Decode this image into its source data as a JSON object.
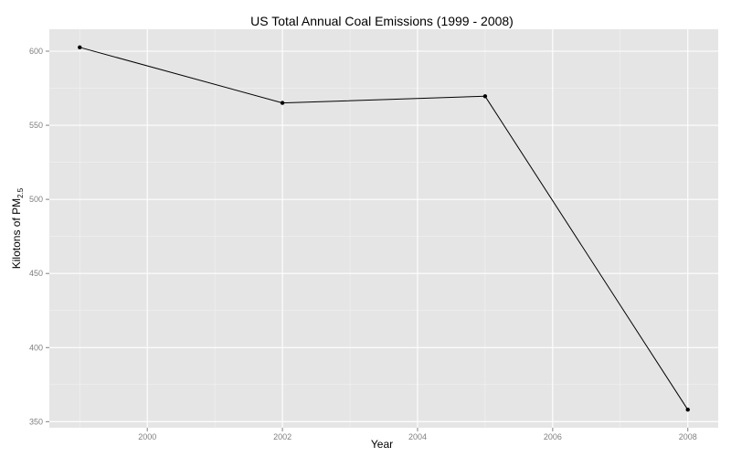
{
  "chart_data": {
    "type": "line",
    "title": "US Total Annual Coal Emissions (1999 - 2008)",
    "xlabel": "Year",
    "ylabel_main": "Kilotons of PM",
    "ylabel_sub": "2.5",
    "x": [
      1999,
      2002,
      2005,
      2008
    ],
    "y": [
      602.6,
      565.1,
      569.6,
      358.1
    ],
    "xlim": [
      1998.55,
      2008.45
    ],
    "ylim": [
      345.9,
      614.8
    ],
    "x_major_ticks": [
      2000,
      2002,
      2004,
      2006,
      2008
    ],
    "x_tick_labels": [
      "2000",
      "2002",
      "2004",
      "2006",
      "2008"
    ],
    "x_minor_ticks": [
      1999,
      2001,
      2003,
      2005,
      2007
    ],
    "y_major_ticks": [
      350,
      400,
      450,
      500,
      550,
      600
    ],
    "y_tick_labels": [
      "350",
      "400",
      "450",
      "500",
      "550",
      "600"
    ],
    "y_minor_ticks": [
      375,
      425,
      475,
      525,
      575
    ],
    "grid": true,
    "colors": {
      "panel": "#e5e5e5",
      "grid": "#ffffff",
      "line": "#000000"
    }
  }
}
